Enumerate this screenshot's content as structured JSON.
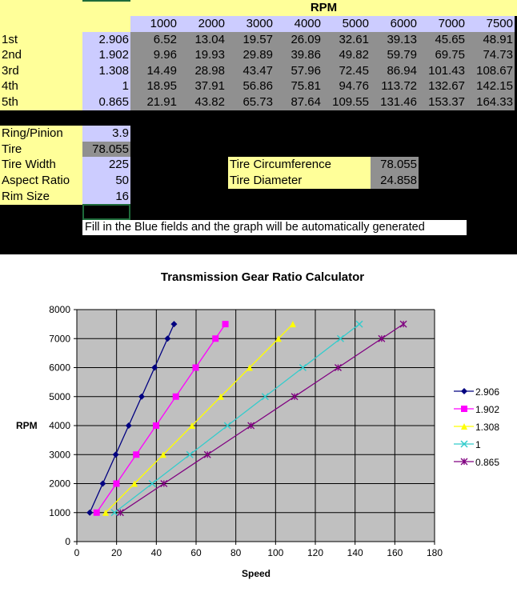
{
  "table": {
    "rpm_header": "RPM",
    "rpm_values": [
      "1000",
      "2000",
      "3000",
      "4000",
      "5000",
      "6000",
      "7000",
      "7500"
    ],
    "rows": [
      {
        "gear": "1st",
        "ratio": "2.906",
        "speeds": [
          "6.52",
          "13.04",
          "19.57",
          "26.09",
          "32.61",
          "39.13",
          "45.65",
          "48.91"
        ]
      },
      {
        "gear": "2nd",
        "ratio": "1.902",
        "speeds": [
          "9.96",
          "19.93",
          "29.89",
          "39.86",
          "49.82",
          "59.79",
          "69.75",
          "74.73"
        ]
      },
      {
        "gear": "3rd",
        "ratio": "1.308",
        "speeds": [
          "14.49",
          "28.98",
          "43.47",
          "57.96",
          "72.45",
          "86.94",
          "101.43",
          "108.67"
        ]
      },
      {
        "gear": "4th",
        "ratio": "1",
        "speeds": [
          "18.95",
          "37.91",
          "56.86",
          "75.81",
          "94.76",
          "113.72",
          "132.67",
          "142.15"
        ]
      },
      {
        "gear": "5th",
        "ratio": "0.865",
        "speeds": [
          "21.91",
          "43.82",
          "65.73",
          "87.64",
          "109.55",
          "131.46",
          "153.37",
          "164.33"
        ]
      }
    ]
  },
  "inputs": [
    {
      "label": "Ring/Pinion",
      "value": "3.9",
      "kind": "input"
    },
    {
      "label": "Tire",
      "value": "78.055",
      "kind": "calc"
    },
    {
      "label": "Tire Width",
      "value": "225",
      "kind": "input"
    },
    {
      "label": "Aspect Ratio",
      "value": "50",
      "kind": "input"
    },
    {
      "label": "Rim Size",
      "value": "16",
      "kind": "input"
    }
  ],
  "tire_info": [
    {
      "label": "Tire Circumference",
      "value": "78.055"
    },
    {
      "label": "Tire Diameter",
      "value": "24.858"
    }
  ],
  "note": "Fill in the Blue fields and the graph will be automatically generated",
  "chart_data": {
    "type": "line",
    "title": "Transmission Gear Ratio Calculator",
    "xlabel": "Speed",
    "ylabel": "RPM",
    "xlim": [
      0,
      180
    ],
    "ylim": [
      0,
      8000
    ],
    "xticks": [
      "0",
      "20",
      "40",
      "60",
      "80",
      "100",
      "120",
      "140",
      "160",
      "180"
    ],
    "yticks": [
      "0",
      "1000",
      "2000",
      "3000",
      "4000",
      "5000",
      "6000",
      "7000",
      "8000"
    ],
    "grid": true,
    "legend": "right",
    "plot_background": "#c0c0c0",
    "y": [
      1000,
      2000,
      3000,
      4000,
      5000,
      6000,
      7000,
      7500
    ],
    "series": [
      {
        "name": "2.906",
        "color": "#000080",
        "marker": "diamond",
        "x": [
          6.52,
          13.04,
          19.57,
          26.09,
          32.61,
          39.13,
          45.65,
          48.91
        ]
      },
      {
        "name": "1.902",
        "color": "#ff00ff",
        "marker": "square",
        "x": [
          9.96,
          19.93,
          29.89,
          39.86,
          49.82,
          59.79,
          69.75,
          74.73
        ]
      },
      {
        "name": "1.308",
        "color": "#ffff00",
        "marker": "triangle",
        "x": [
          14.49,
          28.98,
          43.47,
          57.96,
          72.45,
          86.94,
          101.43,
          108.67
        ]
      },
      {
        "name": "1",
        "color": "#33cccc",
        "marker": "x",
        "x": [
          18.95,
          37.91,
          56.86,
          75.81,
          94.76,
          113.72,
          132.67,
          142.15
        ]
      },
      {
        "name": "0.865",
        "color": "#800080",
        "marker": "star",
        "x": [
          21.91,
          43.82,
          65.73,
          87.64,
          109.55,
          131.46,
          153.37,
          164.33
        ]
      }
    ]
  }
}
